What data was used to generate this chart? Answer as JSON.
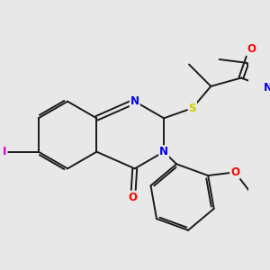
{
  "bg_color": "#e8e8e8",
  "bond_color": "#1a1a1a",
  "bond_width": 1.4,
  "atom_colors": {
    "N": "#0000ee",
    "O": "#ff0000",
    "S": "#cccc00",
    "I": "#cc00cc",
    "C": "#1a1a1a"
  },
  "font_size": 8.5
}
